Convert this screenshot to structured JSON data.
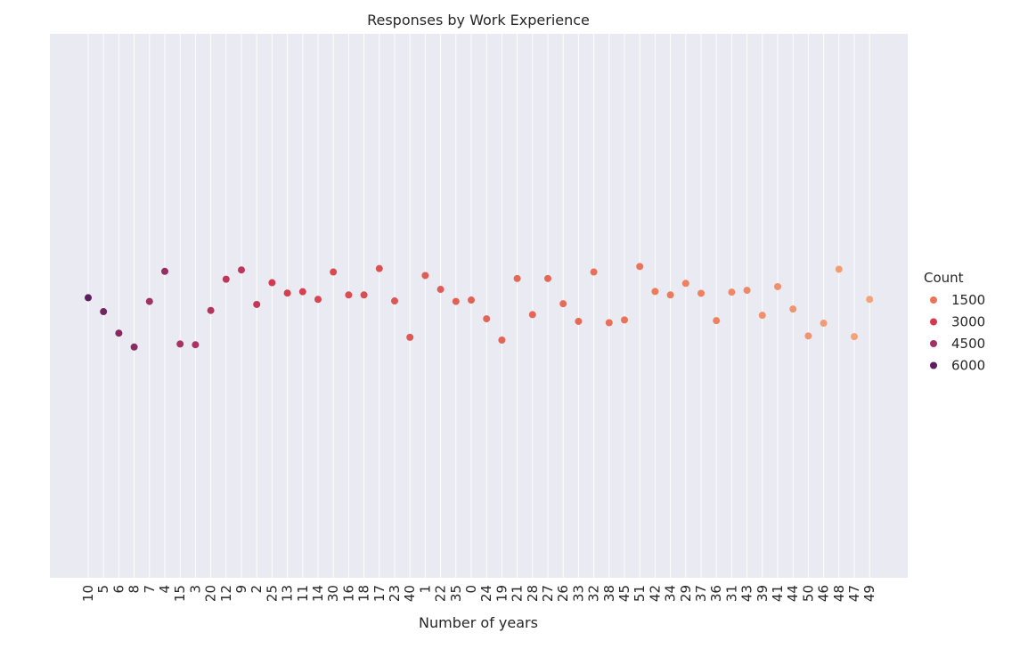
{
  "chart_data": {
    "type": "scatter",
    "title": "Responses by Work Experience",
    "xlabel": "Number of years",
    "ylabel": "",
    "categories": [
      "10",
      "5",
      "6",
      "8",
      "7",
      "4",
      "15",
      "3",
      "20",
      "12",
      "9",
      "2",
      "25",
      "13",
      "11",
      "14",
      "30",
      "16",
      "18",
      "17",
      "23",
      "40",
      "1",
      "22",
      "35",
      "0",
      "24",
      "19",
      "21",
      "28",
      "27",
      "26",
      "33",
      "32",
      "38",
      "45",
      "51",
      "42",
      "34",
      "29",
      "37",
      "36",
      "31",
      "43",
      "39",
      "41",
      "44",
      "50",
      "46",
      "48",
      "47",
      "49"
    ],
    "y_jitter": [
      0.033,
      -0.027,
      -0.12,
      -0.18,
      0.017,
      0.147,
      -0.167,
      -0.17,
      -0.022,
      0.113,
      0.153,
      0.004,
      0.098,
      0.053,
      0.059,
      0.026,
      0.144,
      0.045,
      0.045,
      0.159,
      0.019,
      -0.138,
      0.129,
      0.069,
      0.017,
      0.023,
      -0.058,
      -0.15,
      0.116,
      -0.04,
      0.116,
      0.007,
      -0.069,
      0.144,
      -0.075,
      -0.063,
      0.168,
      0.06,
      0.045,
      0.095,
      0.052,
      -0.066,
      0.057,
      0.065,
      -0.043,
      0.081,
      -0.016,
      -0.132,
      -0.077,
      0.156,
      -0.135,
      0.026
    ],
    "counts": [
      6600,
      5900,
      5400,
      5200,
      4600,
      4900,
      4300,
      4200,
      4000,
      3600,
      3600,
      3400,
      3000,
      2900,
      2800,
      2700,
      2600,
      2500,
      2500,
      2400,
      2300,
      2200,
      2100,
      2100,
      2000,
      2000,
      1900,
      1900,
      1800,
      1800,
      1800,
      1700,
      1700,
      1600,
      1600,
      1500,
      1500,
      1400,
      1400,
      1300,
      1300,
      1300,
      1200,
      1200,
      1100,
      1100,
      1000,
      1000,
      900,
      900,
      800,
      800
    ],
    "ylim": [
      -1,
      1
    ],
    "grid": true,
    "legend": {
      "title": "Count",
      "position": "right",
      "entries": [
        {
          "label": "1500",
          "color": "#ea7458"
        },
        {
          "label": "3000",
          "color": "#d13a50"
        },
        {
          "label": "4500",
          "color": "#a23263"
        },
        {
          "label": "6000",
          "color": "#5c1e5f"
        }
      ]
    },
    "colors": {
      "background": "#eaeaf2",
      "grid": "#ffffff"
    }
  }
}
